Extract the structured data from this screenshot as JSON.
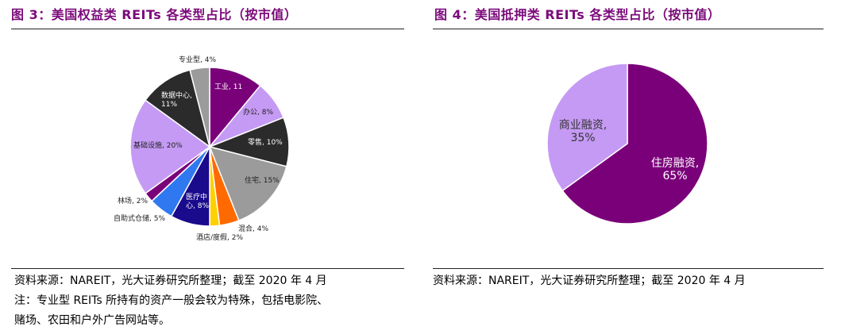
{
  "left": {
    "title": "图 3：美国权益类 REITs 各类型占比（按市值）",
    "source": "资料来源：NAREIT，光大证券研究所整理；截至 2020 年 4 月",
    "note_line1": "注：专业型 REITs 所持有的资产一般会较为特殊，包括电影院、",
    "note_line2": "赌场、农田和户外广告网站等。"
  },
  "right": {
    "title": "图 4：美国抵押类 REITs 各类型占比（按市值）",
    "source": "资料来源：NAREIT，光大证券研究所整理；截至 2020 年 4 月"
  },
  "chart_data": [
    {
      "type": "pie",
      "title": "",
      "slices": [
        {
          "label": "工业, 11%",
          "value": 11,
          "color": "#7a007a"
        },
        {
          "label": "办公, 8%",
          "value": 8,
          "color": "#c59af4"
        },
        {
          "label": "零售, 10%",
          "value": 10,
          "color": "#2b2b2b"
        },
        {
          "label": "住宅, 15%",
          "value": 15,
          "color": "#9b9b9b"
        },
        {
          "label": "混合, 4%",
          "value": 4,
          "color": "#ff6a00"
        },
        {
          "label": "酒店/度假, 2%",
          "value": 2,
          "color": "#ffd000"
        },
        {
          "label": "医疗中心, 8%",
          "value": 8,
          "color": "#1a0a8c"
        },
        {
          "label": "自助式仓储, 5%",
          "value": 5,
          "color": "#2f78f0"
        },
        {
          "label": "林场, 2%",
          "value": 2,
          "color": "#7a007a"
        },
        {
          "label": "基础设施, 20%",
          "value": 20,
          "color": "#c59af4"
        },
        {
          "label": "数据中心, 11%",
          "value": 11,
          "color": "#2b2b2b"
        },
        {
          "label": "专业型, 4%",
          "value": 4,
          "color": "#9b9b9b"
        }
      ]
    },
    {
      "type": "pie",
      "title": "",
      "slices": [
        {
          "label": "住房融资, 65%",
          "value": 65,
          "color": "#7a007a"
        },
        {
          "label": "商业融资, 35%",
          "value": 35,
          "color": "#c59af4"
        }
      ]
    }
  ]
}
